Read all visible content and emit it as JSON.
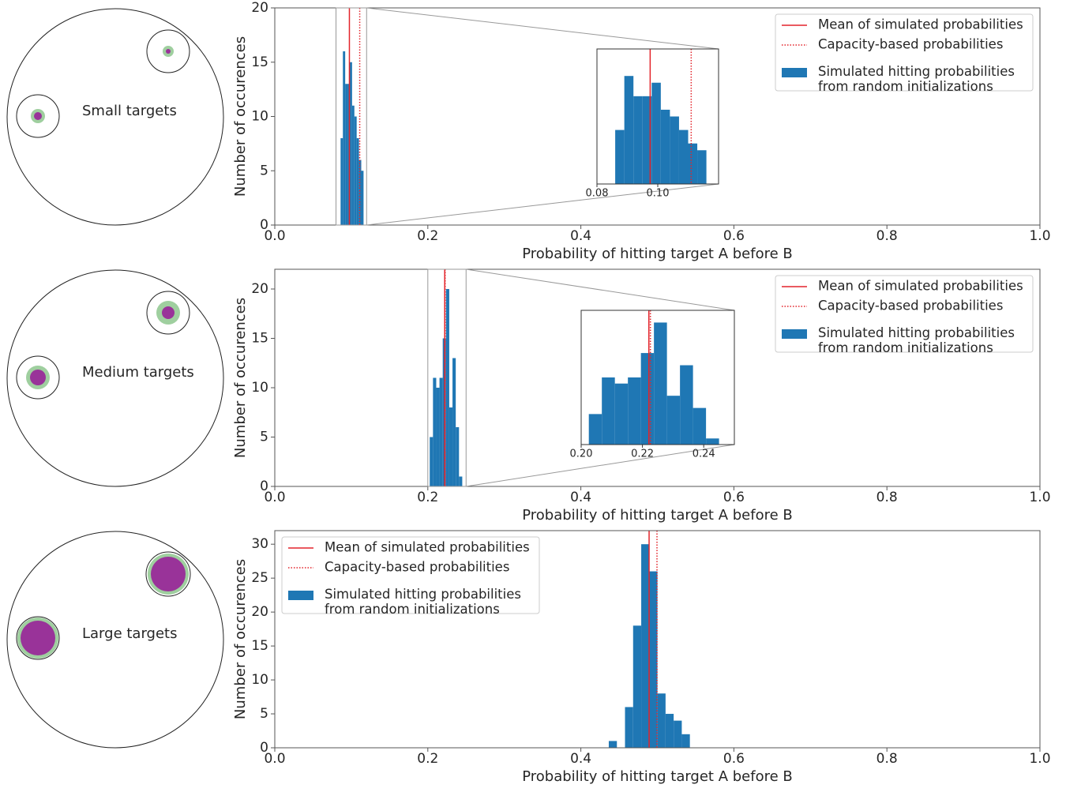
{
  "diagrams": [
    {
      "label": "Small targets"
    },
    {
      "label": "Medium targets"
    },
    {
      "label": "Large targets"
    }
  ],
  "chart_data": [
    {
      "type": "histogram",
      "xlabel": "Probability of hitting target A before B",
      "ylabel": "Number of occurences",
      "xlim": [
        0,
        1
      ],
      "ylim": [
        0,
        20
      ],
      "xticks": [
        {
          "value": 0,
          "label": "0.0"
        },
        0.2,
        0.4,
        0.6,
        0.8,
        {
          "value": 1,
          "label": "1.0"
        }
      ],
      "yticks": [
        0,
        5,
        10,
        15,
        20
      ],
      "legend": "upper right",
      "series": [
        {
          "name": "Simulated hitting probabilities\nfrom random initializations",
          "color": "#1f77b4",
          "bins": [
            0.086,
            0.089,
            0.092,
            0.095,
            0.098,
            0.101,
            0.104,
            0.107,
            0.11,
            0.113,
            0.116
          ],
          "values": [
            8,
            16,
            13,
            13,
            15,
            11,
            10,
            8,
            6,
            5
          ]
        }
      ],
      "lines": [
        {
          "name": "Mean of simulated probabilities",
          "color": "#e3242b",
          "style": "solid",
          "value": 0.0975
        },
        {
          "name": "Capacity-based probabilities",
          "color": "#e3242b",
          "style": "dotted",
          "value": 0.111
        }
      ],
      "inset": {
        "xlim": [
          0.08,
          0.12
        ],
        "ylim": [
          0,
          20
        ],
        "xticks": [
          {
            "value": 0.08,
            "label": "0.08"
          },
          {
            "value": 0.1,
            "label": "0.10"
          }
        ]
      }
    },
    {
      "type": "histogram",
      "xlabel": "Probability of hitting target A before B",
      "ylabel": "Number of occurences",
      "xlim": [
        0,
        1
      ],
      "ylim": [
        0,
        22
      ],
      "xticks": [
        {
          "value": 0,
          "label": "0.0"
        },
        0.2,
        0.4,
        0.6,
        0.8,
        {
          "value": 1,
          "label": "1.0"
        }
      ],
      "yticks": [
        0,
        5,
        10,
        15,
        20
      ],
      "legend": "upper right",
      "series": [
        {
          "name": "Simulated hitting probabilities\nfrom random initializations",
          "color": "#1f77b4",
          "bins": [
            0.2025,
            0.20675,
            0.211,
            0.21525,
            0.2195,
            0.22375,
            0.228,
            0.23225,
            0.2365,
            0.24075,
            0.245
          ],
          "values": [
            5,
            11,
            10,
            11,
            15,
            20,
            8,
            13,
            6,
            1
          ]
        }
      ],
      "lines": [
        {
          "name": "Mean of simulated probabilities",
          "color": "#e3242b",
          "style": "solid",
          "value": 0.2221
        },
        {
          "name": "Capacity-based probabilities",
          "color": "#e3242b",
          "style": "dotted",
          "value": 0.2226
        }
      ],
      "inset": {
        "xlim": [
          0.2,
          0.25
        ],
        "ylim": [
          0,
          22
        ],
        "xticks": [
          {
            "value": 0.2,
            "label": "0.20"
          },
          0.22,
          0.24
        ]
      }
    },
    {
      "type": "histogram",
      "xlabel": "Probability of hitting target A before B",
      "ylabel": "Number of occurences",
      "xlim": [
        0,
        1
      ],
      "ylim": [
        0,
        32
      ],
      "xticks": [
        {
          "value": 0,
          "label": "0.0"
        },
        0.2,
        0.4,
        0.6,
        0.8,
        {
          "value": 1,
          "label": "1.0"
        }
      ],
      "yticks": [
        0,
        5,
        10,
        15,
        20,
        25,
        30
      ],
      "legend": "upper left",
      "series": [
        {
          "name": "Simulated hitting probabilities\nfrom random initializations",
          "color": "#1f77b4",
          "bins": [
            0.4365,
            0.4471,
            0.4577,
            0.4683,
            0.4789,
            0.4895,
            0.5001,
            0.5107,
            0.5213,
            0.5319,
            0.5425
          ],
          "values": [
            1,
            0,
            6,
            18,
            30,
            26,
            8,
            5,
            4,
            2
          ]
        }
      ],
      "lines": [
        {
          "name": "Mean of simulated probabilities",
          "color": "#e3242b",
          "style": "solid",
          "value": 0.4892
        },
        {
          "name": "Capacity-based probabilities",
          "color": "#e3242b",
          "style": "dotted",
          "value": 0.4995
        }
      ]
    }
  ]
}
